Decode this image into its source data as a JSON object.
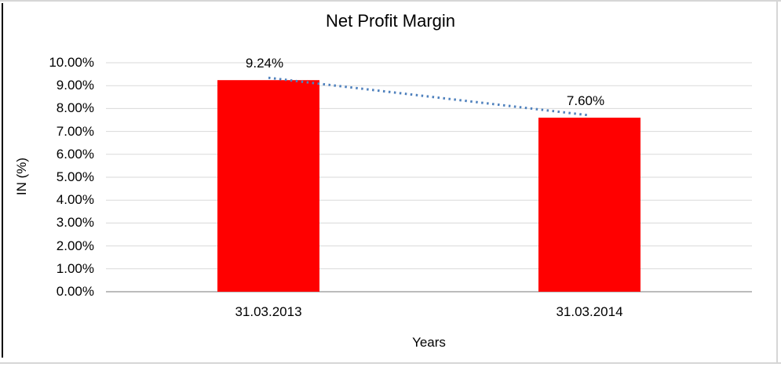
{
  "frame": {
    "border_color": "#d6d6d6",
    "left_line_color": "#000000"
  },
  "chart_data": {
    "type": "bar",
    "title": "Net Profit Margin",
    "xlabel": "Years",
    "ylabel": "IN (%)",
    "categories": [
      "31.03.2013",
      "31.03.2014"
    ],
    "values": [
      9.24,
      7.6
    ],
    "data_labels": [
      "9.24%",
      "7.60%"
    ],
    "yticks": [
      "10.00%",
      "9.00%",
      "8.00%",
      "7.00%",
      "6.00%",
      "5.00%",
      "4.00%",
      "3.00%",
      "2.00%",
      "1.00%",
      "0.00%"
    ],
    "ylim": [
      0,
      10
    ],
    "grid": true,
    "legend": "none",
    "bar_color": "#ff0000",
    "gridline_color": "#d9d9d9",
    "axis_line_color": "#a6a6a6",
    "trendline": {
      "show": true,
      "color": "#4f81bd",
      "style": "dotted"
    },
    "text_color": "#000000"
  }
}
